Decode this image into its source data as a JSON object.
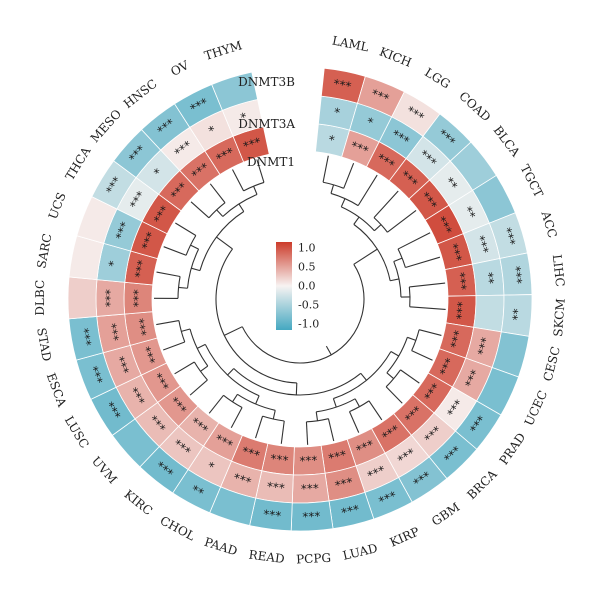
{
  "chart_data": {
    "type": "heatmap",
    "layout": "circular",
    "tracks": [
      "DNMT1",
      "DNMT3A",
      "DNMT3B"
    ],
    "categories": [
      "LAML",
      "KICH",
      "LGG",
      "COAD",
      "BLCA",
      "TGCT",
      "ACC",
      "LIHC",
      "SKCM",
      "CESC",
      "UCEC",
      "PRAD",
      "BRCA",
      "GBM",
      "KIRP",
      "LUAD",
      "PCPG",
      "READ",
      "PAAD",
      "CHOL",
      "KIRC",
      "UVM",
      "LUSC",
      "ESCA",
      "STAD",
      "DLBC",
      "SARC",
      "UCS",
      "THCA",
      "MESO",
      "HNSC",
      "OV",
      "THYM"
    ],
    "values": {
      "DNMT1": [
        -0.35,
        0.45,
        0.75,
        0.8,
        0.85,
        0.9,
        0.85,
        0.8,
        0.85,
        0.75,
        0.75,
        0.75,
        0.7,
        0.7,
        0.55,
        0.65,
        0.55,
        0.6,
        0.65,
        0.45,
        0.35,
        0.5,
        0.5,
        0.5,
        0.55,
        0.6,
        0.8,
        0.85,
        0.85,
        0.75,
        0.7,
        0.75,
        0.85
      ],
      "DNMT3A": [
        -0.45,
        -0.55,
        -0.6,
        -0.2,
        -0.1,
        -0.1,
        -0.2,
        -0.35,
        -0.3,
        0.4,
        0.4,
        0.05,
        0.2,
        0.15,
        0.2,
        0.55,
        0.4,
        0.3,
        0.35,
        0.25,
        0.25,
        0.3,
        0.35,
        0.4,
        0.45,
        0.4,
        -0.5,
        -0.55,
        -0.1,
        -0.2,
        0.05,
        0.1,
        0.05
      ],
      "DNMT3B": [
        0.8,
        0.45,
        0.1,
        -0.55,
        -0.5,
        -0.6,
        -0.3,
        -0.4,
        -0.35,
        -0.65,
        -0.7,
        -0.7,
        -0.7,
        -0.65,
        -0.7,
        -0.75,
        -0.75,
        -0.75,
        -0.7,
        -0.7,
        -0.75,
        -0.7,
        -0.75,
        -0.7,
        -0.7,
        0.2,
        0.05,
        0.05,
        -0.3,
        -0.6,
        -0.65,
        -0.7,
        -0.6
      ]
    },
    "significance": {
      "DNMT1": [
        "*",
        "***",
        "***",
        "***",
        "***",
        "***",
        "***",
        "***",
        "***",
        "***",
        "***",
        "***",
        "***",
        "***",
        "***",
        "***",
        "***",
        "***",
        "***",
        "***",
        "***",
        "***",
        "***",
        "***",
        "***",
        "***",
        "***",
        "***",
        "***",
        "***",
        "***",
        "***",
        "***"
      ],
      "DNMT3A": [
        "*",
        "*",
        "***",
        "***",
        "**",
        "**",
        "***",
        "**",
        "",
        "***",
        "***",
        "***",
        "***",
        "***",
        "***",
        "***",
        "***",
        "***",
        "***",
        "*",
        "***",
        "***",
        "***",
        "***",
        "***",
        "***",
        "*",
        "***",
        "***",
        "*",
        "***",
        "*",
        "*"
      ],
      "DNMT3B": [
        "***",
        "***",
        "***",
        "***",
        "",
        "",
        "***",
        "***",
        "**",
        "",
        "",
        "***",
        "***",
        "***",
        "***",
        "***",
        "***",
        "***",
        "",
        "**",
        "***",
        "",
        "***",
        "***",
        "***",
        "",
        "",
        "",
        "***",
        "***",
        "***",
        "***",
        ""
      ]
    },
    "legend": {
      "ticks": [
        "1.0",
        "0.5",
        "0.0",
        "-0.5",
        "-1.0"
      ],
      "range": [
        -1,
        1
      ]
    },
    "colors": {
      "positive": "#cc3b2a",
      "neutral": "#f7f3f2",
      "negative": "#45a8c1"
    },
    "dendrogram": true
  }
}
